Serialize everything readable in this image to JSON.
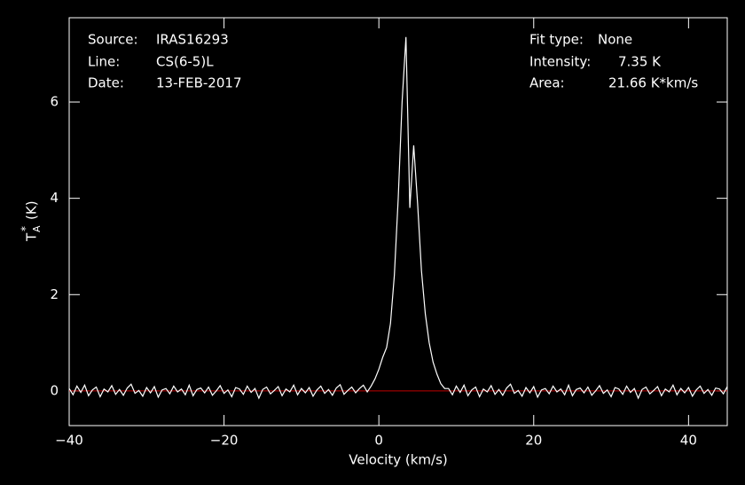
{
  "chart_data": {
    "type": "line",
    "annotations": {
      "source_label": "Source:",
      "source": "IRAS16293",
      "line_label": "Line:",
      "line": "CS(6-5)L",
      "date_label": "Date:",
      "date": "13-FEB-2017",
      "fit_label": "Fit type:",
      "fit": "None",
      "intensity_label": "Intensity:",
      "intensity": "7.35 K",
      "area_label": "Area:",
      "area": "21.66 K*km/s"
    },
    "x_label": "Velocity (km/s)",
    "y_label": {
      "symbol": "T",
      "subscript": "A",
      "superscript": "*",
      "unit": "(K)"
    },
    "xlim": [
      -40,
      45
    ],
    "ylim": [
      -0.72,
      7.75
    ],
    "xticks": [
      {
        "value": -40,
        "label": "−40"
      },
      {
        "value": -20,
        "label": "−20"
      },
      0,
      20,
      40
    ],
    "yticks": [
      0,
      2,
      4,
      6
    ],
    "baseline": 0,
    "baseline_color": "#c00000",
    "x": [
      -40,
      -39.5,
      -39,
      -38.5,
      -38,
      -37.5,
      -37,
      -36.5,
      -36,
      -35.5,
      -35,
      -34.5,
      -34,
      -33.5,
      -33,
      -32.5,
      -32,
      -31.5,
      -31,
      -30.5,
      -30,
      -29.5,
      -29,
      -28.5,
      -28,
      -27.5,
      -27,
      -26.5,
      -26,
      -25.5,
      -25,
      -24.5,
      -24,
      -23.5,
      -23,
      -22.5,
      -22,
      -21.5,
      -21,
      -20.5,
      -20,
      -19.5,
      -19,
      -18.5,
      -18,
      -17.5,
      -17,
      -16.5,
      -16,
      -15.5,
      -15,
      -14.5,
      -14,
      -13.5,
      -13,
      -12.5,
      -12,
      -11.5,
      -11,
      -10.5,
      -10,
      -9.5,
      -9,
      -8.5,
      -8,
      -7.5,
      -7,
      -6.5,
      -6,
      -5.5,
      -5,
      -4.5,
      -4,
      -3.5,
      -3,
      -2.5,
      -2,
      -1.5,
      -1,
      -0.5,
      0,
      0.5,
      1,
      1.5,
      2,
      2.5,
      3,
      3.5,
      4,
      4.5,
      5,
      5.5,
      6,
      6.5,
      7,
      7.5,
      8,
      8.5,
      9,
      9.5,
      10,
      10.5,
      11,
      11.5,
      12,
      12.5,
      13,
      13.5,
      14,
      14.5,
      15,
      15.5,
      16,
      16.5,
      17,
      17.5,
      18,
      18.5,
      19,
      19.5,
      20,
      20.5,
      21,
      21.5,
      22,
      22.5,
      23,
      23.5,
      24,
      24.5,
      25,
      25.5,
      26,
      26.5,
      27,
      27.5,
      28,
      28.5,
      29,
      29.5,
      30,
      30.5,
      31,
      31.5,
      32,
      32.5,
      33,
      33.5,
      34,
      34.5,
      35,
      35.5,
      36,
      36.5,
      37,
      37.5,
      38,
      38.5,
      39,
      39.5,
      40,
      40.5,
      41,
      41.5,
      42,
      42.5,
      43,
      43.5,
      44,
      44.5,
      45
    ],
    "series": [
      {
        "color": "#ffffff",
        "values": [
          0.05,
          -0.08,
          0.1,
          -0.03,
          0.12,
          -0.1,
          0.02,
          0.08,
          -0.12,
          0.04,
          -0.02,
          0.11,
          -0.07,
          0.03,
          -0.09,
          0.06,
          0.14,
          -0.05,
          0.01,
          -0.11,
          0.07,
          -0.04,
          0.09,
          -0.13,
          0.02,
          0.05,
          -0.06,
          0.1,
          -0.02,
          0.04,
          -0.08,
          0.12,
          -0.1,
          0.03,
          0.06,
          -0.04,
          0.08,
          -0.09,
          0.0,
          0.11,
          -0.05,
          0.02,
          -0.12,
          0.07,
          0.04,
          -0.07,
          0.1,
          -0.03,
          0.05,
          -0.15,
          0.03,
          0.08,
          -0.06,
          0.01,
          0.09,
          -0.1,
          0.04,
          -0.02,
          0.12,
          -0.08,
          0.05,
          -0.04,
          0.07,
          -0.11,
          0.02,
          0.1,
          -0.05,
          0.03,
          -0.09,
          0.06,
          0.13,
          -0.07,
          0.01,
          0.08,
          -0.04,
          0.05,
          0.12,
          -0.02,
          0.1,
          0.25,
          0.45,
          0.7,
          0.9,
          1.4,
          2.4,
          4.0,
          6.0,
          7.35,
          3.8,
          5.1,
          3.9,
          2.5,
          1.6,
          1.0,
          0.6,
          0.35,
          0.15,
          0.05,
          0.05,
          -0.08,
          0.1,
          -0.03,
          0.12,
          -0.1,
          0.02,
          0.08,
          -0.12,
          0.04,
          -0.02,
          0.11,
          -0.07,
          0.03,
          -0.09,
          0.06,
          0.14,
          -0.05,
          0.01,
          -0.11,
          0.07,
          -0.04,
          0.09,
          -0.13,
          0.02,
          0.05,
          -0.06,
          0.1,
          -0.02,
          0.04,
          -0.08,
          0.12,
          -0.1,
          0.03,
          0.06,
          -0.04,
          0.08,
          -0.09,
          0.0,
          0.11,
          -0.05,
          0.02,
          -0.12,
          0.07,
          0.04,
          -0.07,
          0.1,
          -0.03,
          0.05,
          -0.15,
          0.03,
          0.08,
          -0.06,
          0.01,
          0.09,
          -0.1,
          0.04,
          -0.02,
          0.12,
          -0.08,
          0.05,
          -0.04,
          0.07,
          -0.11,
          0.02,
          0.1,
          -0.05,
          0.03,
          -0.09,
          0.06,
          0.04,
          -0.06,
          0.09
        ]
      }
    ]
  }
}
